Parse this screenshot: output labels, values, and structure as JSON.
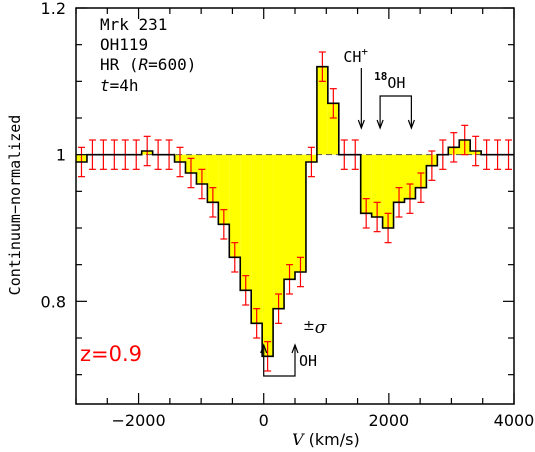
{
  "chart_data": {
    "type": "step",
    "xlabel_prefix": "V",
    "xlabel_suffix": " (km/s)",
    "ylabel": "Continuum−normalized",
    "xlim": [
      -3000,
      4000
    ],
    "ylim": [
      0.66,
      1.2
    ],
    "x_ticks": [
      -2000,
      0,
      2000,
      4000
    ],
    "x_tick_labels": [
      "−2000",
      "0",
      "2000",
      "4000"
    ],
    "y_ticks": [
      0.8,
      1.0,
      1.2
    ],
    "y_tick_labels": [
      "0.8",
      "1",
      "1.2"
    ],
    "continuum": 1.0,
    "bin_width": 175,
    "bins": [
      {
        "x": -3000,
        "y": 0.99,
        "err": 0.02
      },
      {
        "x": -2825,
        "y": 1.0,
        "err": 0.02
      },
      {
        "x": -2650,
        "y": 1.0,
        "err": 0.02
      },
      {
        "x": -2475,
        "y": 1.0,
        "err": 0.02
      },
      {
        "x": -2300,
        "y": 1.0,
        "err": 0.02
      },
      {
        "x": -2125,
        "y": 1.0,
        "err": 0.02
      },
      {
        "x": -1950,
        "y": 1.005,
        "err": 0.02
      },
      {
        "x": -1775,
        "y": 1.0,
        "err": 0.02
      },
      {
        "x": -1600,
        "y": 1.0,
        "err": 0.02
      },
      {
        "x": -1425,
        "y": 0.99,
        "err": 0.02
      },
      {
        "x": -1250,
        "y": 0.975,
        "err": 0.02
      },
      {
        "x": -1075,
        "y": 0.96,
        "err": 0.02
      },
      {
        "x": -900,
        "y": 0.935,
        "err": 0.02
      },
      {
        "x": -725,
        "y": 0.905,
        "err": 0.02
      },
      {
        "x": -550,
        "y": 0.86,
        "err": 0.02
      },
      {
        "x": -375,
        "y": 0.815,
        "err": 0.02
      },
      {
        "x": -200,
        "y": 0.77,
        "err": 0.02
      },
      {
        "x": -25,
        "y": 0.725,
        "err": 0.02
      },
      {
        "x": 150,
        "y": 0.79,
        "err": 0.02
      },
      {
        "x": 325,
        "y": 0.83,
        "err": 0.02
      },
      {
        "x": 500,
        "y": 0.84,
        "err": 0.02
      },
      {
        "x": 675,
        "y": 0.99,
        "err": 0.02
      },
      {
        "x": 850,
        "y": 1.12,
        "err": 0.02
      },
      {
        "x": 1025,
        "y": 1.07,
        "err": 0.02
      },
      {
        "x": 1200,
        "y": 1.0,
        "err": 0.02
      },
      {
        "x": 1375,
        "y": 1.0,
        "err": 0.02
      },
      {
        "x": 1550,
        "y": 0.92,
        "err": 0.02
      },
      {
        "x": 1725,
        "y": 0.915,
        "err": 0.02
      },
      {
        "x": 1900,
        "y": 0.9,
        "err": 0.02
      },
      {
        "x": 2075,
        "y": 0.935,
        "err": 0.02
      },
      {
        "x": 2250,
        "y": 0.94,
        "err": 0.02
      },
      {
        "x": 2425,
        "y": 0.955,
        "err": 0.02
      },
      {
        "x": 2600,
        "y": 0.985,
        "err": 0.02
      },
      {
        "x": 2775,
        "y": 1.0,
        "err": 0.02
      },
      {
        "x": 2950,
        "y": 1.01,
        "err": 0.02
      },
      {
        "x": 3125,
        "y": 1.02,
        "err": 0.02
      },
      {
        "x": 3300,
        "y": 1.005,
        "err": 0.02
      },
      {
        "x": 3475,
        "y": 1.0,
        "err": 0.02
      },
      {
        "x": 3650,
        "y": 1.0,
        "err": 0.02
      },
      {
        "x": 3825,
        "y": 1.0,
        "err": 0.02
      }
    ],
    "legend_lines": [
      "Mrk 231",
      "OH119"
    ],
    "mode_label": {
      "prefix": "HR (",
      "var": "R",
      "suffix": "=600)"
    },
    "time_label": {
      "var": "t",
      "suffix": "=4h"
    },
    "redshift_label": "z=0.9",
    "sigma_label": {
      "pm": "±",
      "sym": "σ"
    },
    "oh_marker": {
      "label": "OH",
      "x_start": 0,
      "x_end": 500
    },
    "ch_marker": {
      "label": "CH",
      "sup": "+",
      "x": 1560
    },
    "oh18_marker": {
      "sup": "18",
      "label": "OH",
      "x_start": 1860,
      "x_end": 2360
    },
    "colors": {
      "fill": "#ffff00",
      "error": "#ff0000",
      "line": "#000000",
      "redshift": "#ff0000"
    }
  }
}
